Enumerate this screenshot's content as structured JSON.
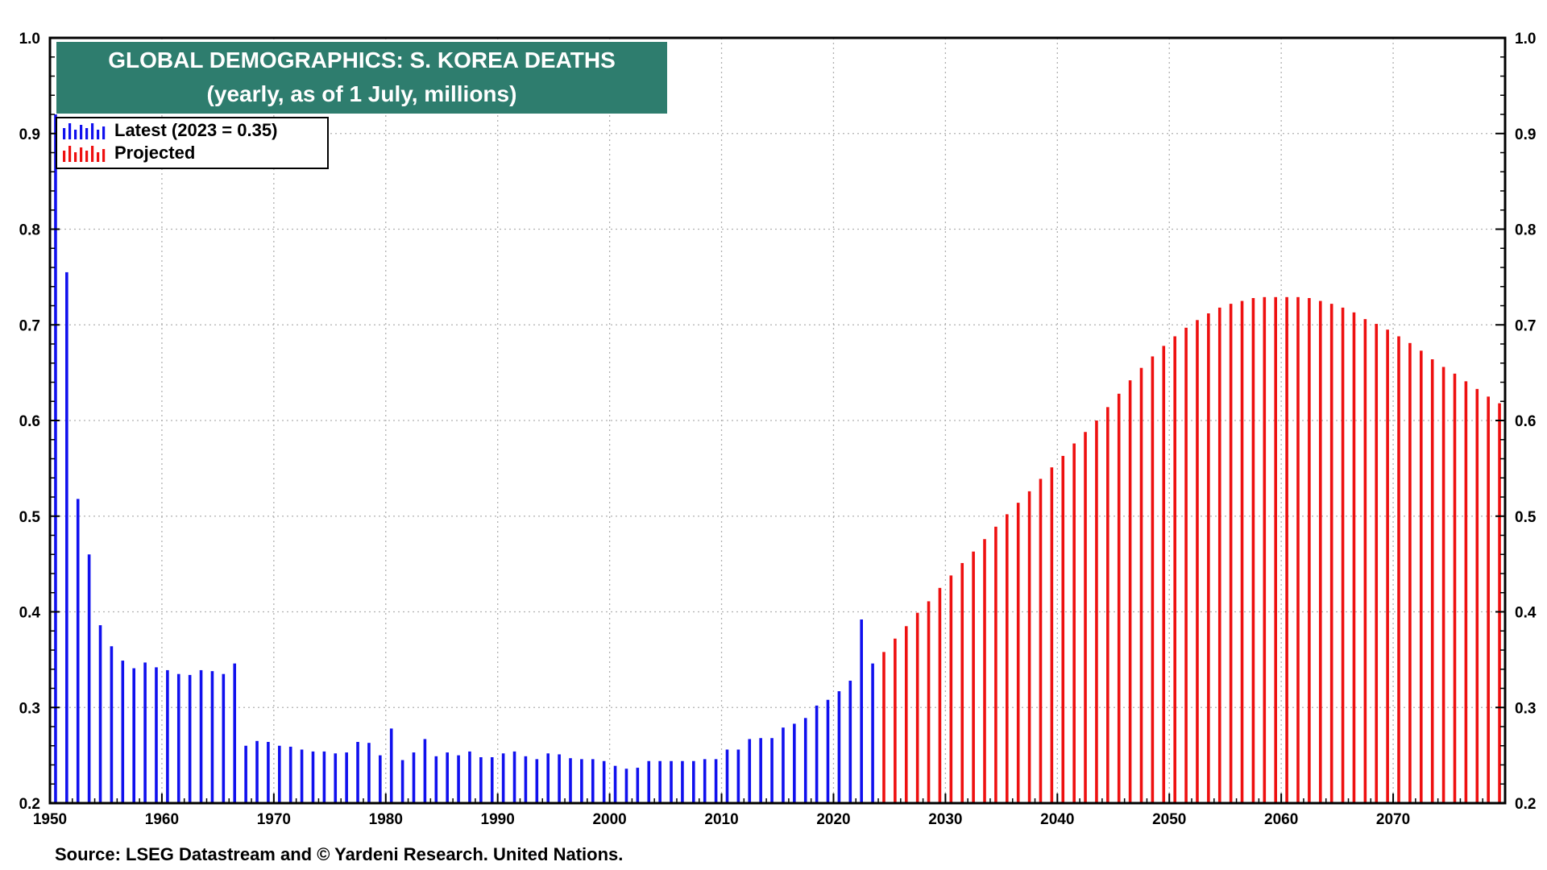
{
  "chart_data": {
    "type": "bar",
    "title": "GLOBAL DEMOGRAPHICS: S. KOREA DEATHS",
    "subtitle": "(yearly, as of 1 July, millions)",
    "source": "Source: LSEG Datastream and © Yardeni Research. United Nations.",
    "ylim": [
      0.2,
      1.0
    ],
    "xlim": [
      1950,
      2080
    ],
    "y_ticks": [
      "0.2",
      "0.3",
      "0.4",
      "0.5",
      "0.6",
      "0.7",
      "0.8",
      "0.9",
      "1.0"
    ],
    "x_ticks": [
      "1950",
      "1960",
      "1970",
      "1980",
      "1990",
      "2000",
      "2010",
      "2020",
      "2030",
      "2040",
      "2050",
      "2060",
      "2070"
    ],
    "grid": true,
    "legend_position": "top-left",
    "series": [
      {
        "name": "Latest (2023 = 0.35)",
        "color": "#1010ee",
        "x": [
          1950,
          1951,
          1952,
          1953,
          1954,
          1955,
          1956,
          1957,
          1958,
          1959,
          1960,
          1961,
          1962,
          1963,
          1964,
          1965,
          1966,
          1967,
          1968,
          1969,
          1970,
          1971,
          1972,
          1973,
          1974,
          1975,
          1976,
          1977,
          1978,
          1979,
          1980,
          1981,
          1982,
          1983,
          1984,
          1985,
          1986,
          1987,
          1988,
          1989,
          1990,
          1991,
          1992,
          1993,
          1994,
          1995,
          1996,
          1997,
          1998,
          1999,
          2000,
          2001,
          2002,
          2003,
          2004,
          2005,
          2006,
          2007,
          2008,
          2009,
          2010,
          2011,
          2012,
          2013,
          2014,
          2015,
          2016,
          2017,
          2018,
          2019,
          2020,
          2021,
          2022,
          2023
        ],
        "values": [
          0.92,
          0.755,
          0.518,
          0.46,
          0.386,
          0.364,
          0.349,
          0.341,
          0.347,
          0.342,
          0.339,
          0.335,
          0.334,
          0.339,
          0.338,
          0.335,
          0.346,
          0.26,
          0.265,
          0.264,
          0.26,
          0.259,
          0.256,
          0.254,
          0.254,
          0.252,
          0.253,
          0.264,
          0.263,
          0.25,
          0.278,
          0.245,
          0.253,
          0.267,
          0.249,
          0.253,
          0.25,
          0.254,
          0.248,
          0.248,
          0.252,
          0.254,
          0.249,
          0.246,
          0.252,
          0.251,
          0.247,
          0.246,
          0.246,
          0.244,
          0.239,
          0.236,
          0.237,
          0.244,
          0.244,
          0.244,
          0.244,
          0.244,
          0.246,
          0.246,
          0.256,
          0.256,
          0.267,
          0.268,
          0.268,
          0.279,
          0.283,
          0.289,
          0.302,
          0.308,
          0.317,
          0.328,
          0.392,
          0.346
        ]
      },
      {
        "name": "Projected",
        "color": "#ee1010",
        "x": [
          2024,
          2025,
          2026,
          2027,
          2028,
          2029,
          2030,
          2031,
          2032,
          2033,
          2034,
          2035,
          2036,
          2037,
          2038,
          2039,
          2040,
          2041,
          2042,
          2043,
          2044,
          2045,
          2046,
          2047,
          2048,
          2049,
          2050,
          2051,
          2052,
          2053,
          2054,
          2055,
          2056,
          2057,
          2058,
          2059,
          2060,
          2061,
          2062,
          2063,
          2064,
          2065,
          2066,
          2067,
          2068,
          2069,
          2070,
          2071,
          2072,
          2073,
          2074,
          2075,
          2076,
          2077,
          2078,
          2079
        ],
        "values": [
          0.358,
          0.372,
          0.385,
          0.399,
          0.411,
          0.425,
          0.438,
          0.451,
          0.463,
          0.476,
          0.489,
          0.502,
          0.514,
          0.526,
          0.539,
          0.551,
          0.563,
          0.576,
          0.588,
          0.6,
          0.614,
          0.628,
          0.642,
          0.655,
          0.667,
          0.678,
          0.688,
          0.697,
          0.705,
          0.712,
          0.718,
          0.722,
          0.725,
          0.728,
          0.729,
          0.729,
          0.729,
          0.729,
          0.728,
          0.725,
          0.722,
          0.718,
          0.713,
          0.706,
          0.701,
          0.695,
          0.688,
          0.681,
          0.673,
          0.664,
          0.656,
          0.649,
          0.641,
          0.633,
          0.625,
          0.618
        ]
      }
    ]
  },
  "colors": {
    "title_bg": "#2e7d6e",
    "title_text": "#ffffff",
    "latest": "#1010ee",
    "projected": "#ee1010",
    "grid": "#b0b0b0"
  }
}
